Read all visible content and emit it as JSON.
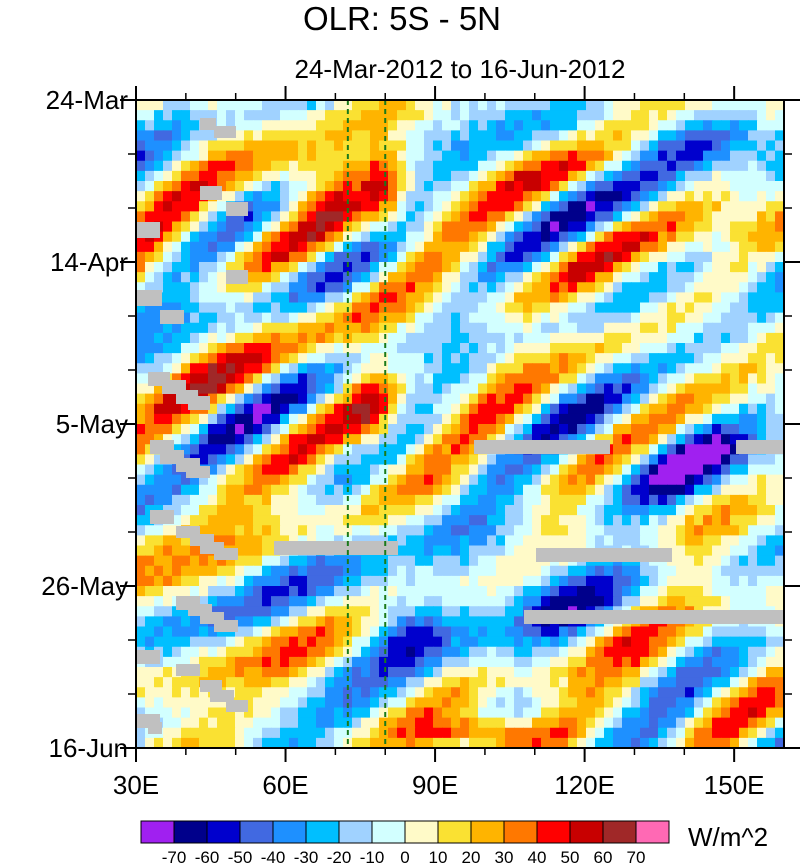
{
  "title": "OLR: 5S - 5N",
  "subtitle": "24-Mar-2012 to 16-Jun-2012",
  "units": "W/m^2",
  "chart_data": {
    "type": "heatmap",
    "title": "OLR: 5S - 5N",
    "subtitle": "24-Mar-2012 to 16-Jun-2012",
    "x_ticks": [
      "30E",
      "60E",
      "90E",
      "120E",
      "150E"
    ],
    "x_tick_values": [
      30,
      60,
      90,
      120,
      150
    ],
    "xlim": [
      30,
      160
    ],
    "y_ticks": [
      "24-Mar",
      "14-Apr",
      "5-May",
      "26-May",
      "16-Jun"
    ],
    "y_tick_days": [
      0,
      21,
      42,
      63,
      84
    ],
    "ylim_days": [
      0,
      84
    ],
    "y_direction": "time increases downward",
    "reference_lines_lon": [
      72.5,
      80
    ],
    "reference_line_style": "dashed green",
    "colorbar": {
      "labels": [
        "-70",
        "-60",
        "-50",
        "-40",
        "-30",
        "-20",
        "-10",
        "0",
        "10",
        "20",
        "30",
        "40",
        "50",
        "60",
        "70"
      ],
      "colors": [
        "#a020f0",
        "#00008b",
        "#0000cd",
        "#4169e1",
        "#1e90ff",
        "#00bfff",
        "#a0d2ff",
        "#d2ffff",
        "#fffac8",
        "#fae132",
        "#ffb400",
        "#ff7800",
        "#ff0000",
        "#c80000",
        "#a02828",
        "#ff69b4"
      ],
      "units": "W/m^2"
    },
    "missing_color": "#c0c0c0",
    "anomaly_features": [
      {
        "lon": [
          55,
          80
        ],
        "day": [
          5,
          16
        ],
        "value": 40
      },
      {
        "lon": [
          72,
          82
        ],
        "day": [
          34,
          46
        ],
        "value": 50
      },
      {
        "lon": [
          76,
          84
        ],
        "day": [
          6,
          16
        ],
        "value": 50
      },
      {
        "lon": [
          85,
          110
        ],
        "day": [
          80,
          84
        ],
        "value": 60
      },
      {
        "lon": [
          68,
          95
        ],
        "day": [
          62,
          72
        ],
        "value": -60
      },
      {
        "lon": [
          120,
          160
        ],
        "day": [
          40,
          52
        ],
        "value": -50
      },
      {
        "lon": [
          110,
          160
        ],
        "day": [
          1,
          8
        ],
        "value": -40
      },
      {
        "lon": [
          95,
          125
        ],
        "day": [
          56,
          68
        ],
        "value": -50
      }
    ]
  }
}
